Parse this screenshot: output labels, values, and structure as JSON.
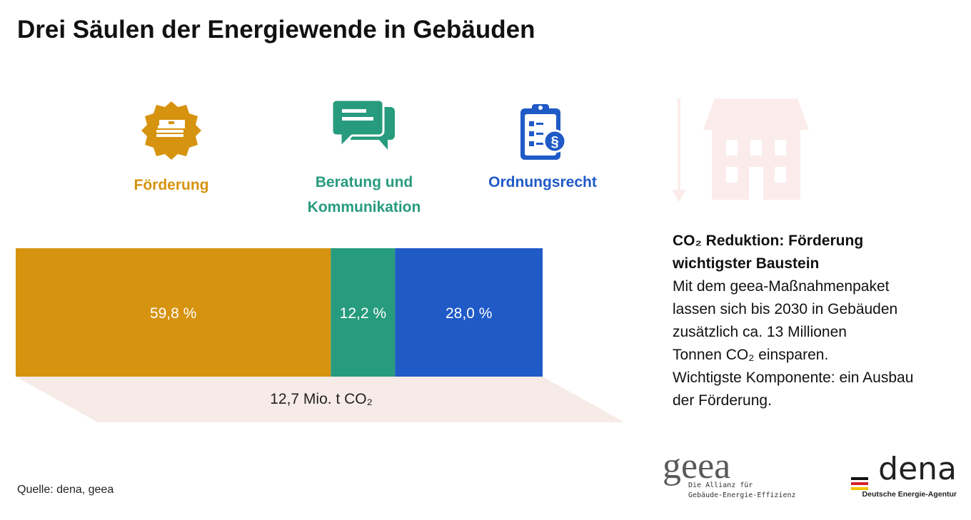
{
  "title": "Drei Säulen der Energiewende in Gebäuden",
  "pillars": [
    {
      "label": "Förderung",
      "icon": "money-badge-icon",
      "color": "#d6930f"
    },
    {
      "label_line1": "Beratung und",
      "label_line2": "Kommunikation",
      "icon": "speech-bubbles-icon",
      "color": "#279b7d"
    },
    {
      "label": "Ordnungsrecht",
      "icon": "clipboard-paragraph-icon",
      "color": "#1f5ac7"
    }
  ],
  "chart_data": {
    "type": "bar",
    "orientation": "horizontal-stacked",
    "total_label": "12,7 Mio. t CO₂",
    "series": [
      {
        "name": "Förderung",
        "value": 59.8,
        "label": "59,8 %",
        "color": "#d6930f"
      },
      {
        "name": "Beratung und Kommunikation",
        "value": 12.2,
        "label": "12,2 %",
        "color": "#279b7d"
      },
      {
        "name": "Ordnungsrecht",
        "value": 28.0,
        "label": "28,0 %",
        "color": "#1f5ac7"
      }
    ],
    "unit": "%"
  },
  "sidebox": {
    "heading_line1": "CO₂ Reduktion: Förderung",
    "heading_line2": "wichtigster Baustein",
    "body_lines": [
      "Mit dem geea-Maßnahmenpaket",
      "lassen sich bis 2030 in Gebäuden",
      "zusätzlich ca. 13 Millionen",
      "Tonnen CO₂ einsparen.",
      "Wichtigste Komponente: ein Ausbau",
      "der Förderung."
    ]
  },
  "source": "Quelle: dena, geea",
  "logos": {
    "geea_wordmark": "geea",
    "geea_tagline1": "Die Allianz für",
    "geea_tagline2": "Gebäude-Energie-Effizienz",
    "dena_wordmark": "dena",
    "dena_tagline": "Deutsche Energie-Agentur"
  },
  "colors": {
    "accent_house": "#fbeceb",
    "shadow": "#f7ebe7"
  }
}
